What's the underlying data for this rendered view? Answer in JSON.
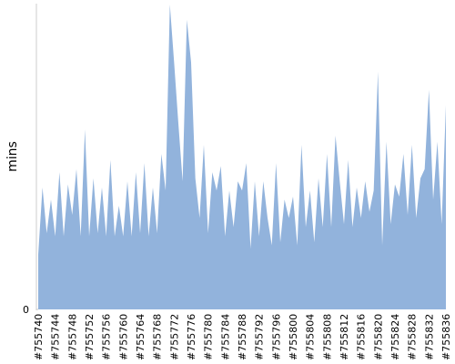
{
  "chart_data": {
    "type": "area",
    "y_label": "mins",
    "color": "#92b3dc",
    "categories": [
      "#755740",
      null,
      null,
      null,
      "#755744",
      null,
      null,
      null,
      "#755748",
      null,
      null,
      null,
      "#755752",
      null,
      null,
      null,
      "#755756",
      null,
      null,
      null,
      "#755760",
      null,
      null,
      null,
      "#755764",
      null,
      null,
      null,
      "#755768",
      null,
      null,
      null,
      "#755772",
      null,
      null,
      null,
      "#755776",
      null,
      null,
      null,
      "#755780",
      null,
      null,
      null,
      "#755784",
      null,
      null,
      null,
      "#755788",
      null,
      null,
      null,
      "#755792",
      null,
      null,
      null,
      "#755796",
      null,
      null,
      null,
      "#755800",
      null,
      null,
      null,
      "#755804",
      null,
      null,
      null,
      "#755808",
      null,
      null,
      null,
      "#755812",
      null,
      null,
      null,
      "#755816",
      null,
      null,
      null,
      "#755820",
      null,
      null,
      null,
      "#755824",
      null,
      null,
      null,
      "#755828",
      null,
      null,
      null,
      "#755832",
      null,
      null,
      null,
      "#755836"
    ],
    "values": [
      18,
      40,
      25,
      36,
      24,
      45,
      24,
      41,
      31,
      46,
      24,
      59,
      24,
      43,
      25,
      40,
      24,
      49,
      24,
      34,
      24,
      42,
      24,
      45,
      25,
      48,
      24,
      40,
      25,
      51,
      39,
      100,
      81,
      61,
      42,
      95,
      81,
      43,
      30,
      54,
      25,
      45,
      39,
      47,
      24,
      39,
      27,
      42,
      39,
      48,
      20,
      42,
      24,
      42,
      30,
      21,
      48,
      22,
      36,
      30,
      37,
      21,
      54,
      27,
      39,
      22,
      43,
      27,
      51,
      27,
      57,
      42,
      28,
      49,
      27,
      40,
      30,
      42,
      32,
      39,
      78,
      21,
      55,
      28,
      41,
      37,
      51,
      31,
      54,
      30,
      43,
      46,
      72,
      36,
      55,
      28,
      67
    ],
    "ylim": [
      0,
      100
    ],
    "yticks": [
      0
    ]
  }
}
